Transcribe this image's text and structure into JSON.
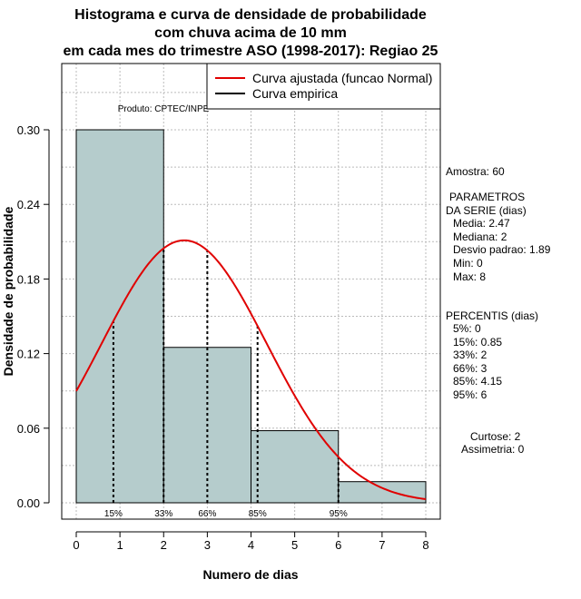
{
  "chart_data": {
    "type": "bar",
    "title_lines": [
      "Histograma e curva de densidade de probabilidade",
      "com chuva acima de 10 mm",
      "em cada mes do trimestre ASO (1998-2017): Regiao 25"
    ],
    "xlabel": "Numero de dias",
    "ylabel": "Densidade de probabilidade",
    "xlim": [
      0,
      8
    ],
    "ylim": [
      0,
      0.36
    ],
    "x_ticks": [
      0,
      1,
      2,
      3,
      4,
      5,
      6,
      7,
      8
    ],
    "y_ticks": [
      0.0,
      0.06,
      0.12,
      0.18,
      0.24,
      0.3
    ],
    "y_tick_labels": [
      "0.00",
      "0.06",
      "0.12",
      "0.18",
      "0.24",
      "0.30"
    ],
    "bins": [
      {
        "from": 0,
        "to": 2,
        "density": 0.3
      },
      {
        "from": 2,
        "to": 4,
        "density": 0.125
      },
      {
        "from": 4,
        "to": 6,
        "density": 0.058
      },
      {
        "from": 6,
        "to": 8,
        "density": 0.017
      }
    ],
    "bar_color": "#b5cccc",
    "curve": {
      "name": "Curva ajustada (funcao Normal)",
      "mean": 2.47,
      "sd": 1.89,
      "color": "#e00000"
    },
    "empirical": {
      "name": "Curva empirica",
      "color": "#000000"
    },
    "percentile_lines": [
      {
        "label": "15%",
        "x": 0.85
      },
      {
        "label": "33%",
        "x": 2
      },
      {
        "label": "66%",
        "x": 3
      },
      {
        "label": "85%",
        "x": 4.15
      },
      {
        "label": "95%",
        "x": 6
      }
    ],
    "grid": true,
    "legend_position": "top-right"
  },
  "product_label": "Produto: CPTEC/INPE",
  "side_panel": {
    "amostra": "Amostra: 60",
    "param_title_1": "PARAMETROS",
    "param_title_2": "DA SERIE (dias)",
    "params": [
      "Media: 2.47",
      "Mediana: 2",
      "Desvio padrao: 1.89",
      "Min: 0",
      "Max: 8"
    ],
    "percentis_title": "PERCENTIS (dias)",
    "percentis": [
      "5%: 0",
      "15%: 0.85",
      "33%: 2",
      "66%: 3",
      "85%: 4.15",
      "95%: 6"
    ],
    "curtose": "Curtose: 2",
    "assimetria": "Assimetria: 0"
  }
}
